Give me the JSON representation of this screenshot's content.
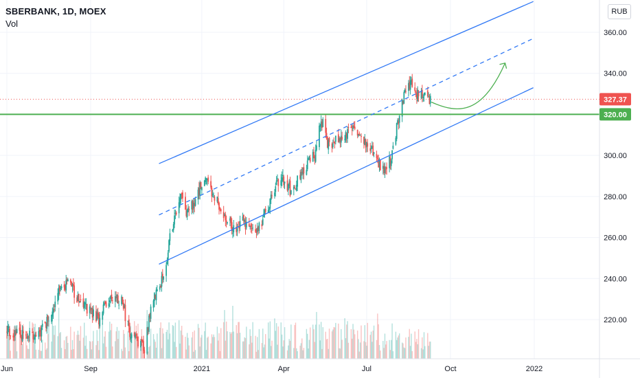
{
  "header": {
    "title": "SBERBANK, 1D, MOEX",
    "volume_label": "Vol"
  },
  "currency_badge": "RUB",
  "colors": {
    "up": "#26a69a",
    "down": "#ef5350",
    "channel": "#3179f5",
    "support": "#4caf50",
    "price_badge": "#ef5350",
    "support_badge": "#4caf50"
  },
  "chart_data": {
    "type": "candlestick",
    "title": "SBERBANK, 1D, MOEX",
    "ylim": [
      200,
      375
    ],
    "y_ticks": [
      "220.00",
      "240.00",
      "260.00",
      "280.00",
      "300.00",
      "320.00",
      "340.00",
      "360.00"
    ],
    "x_ticks": [
      "Jun",
      "Sep",
      "2021",
      "Apr",
      "Jul",
      "Oct",
      "2022"
    ],
    "last_price": "327.37",
    "support_level": "320.00",
    "price_anchors": [
      [
        "2020-06-01",
        215
      ],
      [
        "2020-06-20",
        212
      ],
      [
        "2020-07-05",
        212
      ],
      [
        "2020-07-20",
        222
      ],
      [
        "2020-08-01",
        238
      ],
      [
        "2020-08-10",
        236
      ],
      [
        "2020-08-25",
        226
      ],
      [
        "2020-09-10",
        220
      ],
      [
        "2020-09-20",
        230
      ],
      [
        "2020-10-05",
        229
      ],
      [
        "2020-10-15",
        212
      ],
      [
        "2020-10-30",
        206
      ],
      [
        "2020-11-05",
        222
      ],
      [
        "2020-11-12",
        235
      ],
      [
        "2020-11-20",
        240
      ],
      [
        "2020-11-27",
        260
      ],
      [
        "2020-12-08",
        282
      ],
      [
        "2020-12-15",
        272
      ],
      [
        "2020-12-22",
        276
      ],
      [
        "2021-01-05",
        290
      ],
      [
        "2021-01-15",
        280
      ],
      [
        "2021-01-25",
        272
      ],
      [
        "2021-02-05",
        264
      ],
      [
        "2021-02-15",
        268
      ],
      [
        "2021-03-01",
        262
      ],
      [
        "2021-03-15",
        275
      ],
      [
        "2021-03-28",
        290
      ],
      [
        "2021-04-10",
        282
      ],
      [
        "2021-04-20",
        292
      ],
      [
        "2021-05-05",
        300
      ],
      [
        "2021-05-12",
        318
      ],
      [
        "2021-05-20",
        305
      ],
      [
        "2021-06-01",
        308
      ],
      [
        "2021-06-15",
        313
      ],
      [
        "2021-06-28",
        308
      ],
      [
        "2021-07-10",
        300
      ],
      [
        "2021-07-20",
        292
      ],
      [
        "2021-07-28",
        298
      ],
      [
        "2021-08-05",
        318
      ],
      [
        "2021-08-12",
        330
      ],
      [
        "2021-08-20",
        336
      ],
      [
        "2021-08-27",
        328
      ],
      [
        "2021-09-03",
        332
      ],
      [
        "2021-09-09",
        327
      ]
    ],
    "trend_lines": [
      {
        "name": "channel-upper",
        "style": "solid",
        "points": [
          [
            "2020-11-15",
            296
          ],
          [
            "2021-12-31",
            375
          ]
        ]
      },
      {
        "name": "channel-middle",
        "style": "dashed",
        "points": [
          [
            "2020-11-15",
            271
          ],
          [
            "2021-12-31",
            357
          ]
        ]
      },
      {
        "name": "channel-lower",
        "style": "solid",
        "points": [
          [
            "2020-11-15",
            247
          ],
          [
            "2021-12-31",
            333
          ]
        ]
      }
    ],
    "support_line": 320,
    "projection_arrow": [
      [
        "2021-09-10",
        326
      ],
      [
        "2021-10-10",
        320
      ],
      [
        "2021-11-05",
        320
      ],
      [
        "2021-11-30",
        345
      ]
    ]
  }
}
